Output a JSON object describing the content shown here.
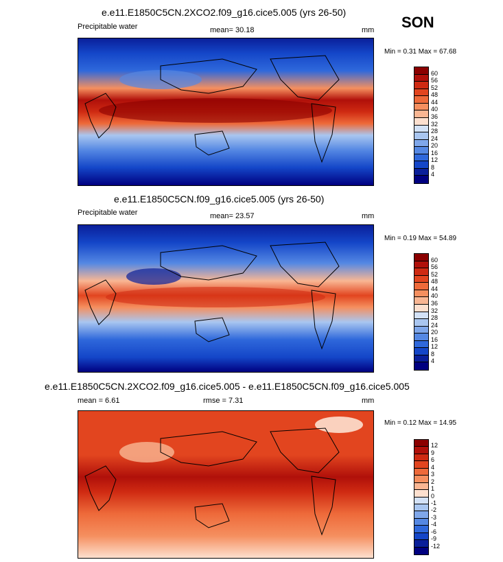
{
  "season": "SON",
  "panels": [
    {
      "title": "e.e11.E1850C5CN.2XCO2.f09_g16.cice5.005 (yrs 26-50)",
      "left_label": "Precipitable water",
      "stat_label": "mean=  30.18",
      "units": "mm",
      "minmax": "Min =   0.31 Max =  67.68",
      "colorbar_labels": [
        "60",
        "56",
        "52",
        "48",
        "44",
        "40",
        "36",
        "32",
        "28",
        "24",
        "20",
        "16",
        "12",
        "8",
        "4"
      ],
      "colors": [
        "#8b0000",
        "#b0100a",
        "#cf2a12",
        "#e2451f",
        "#ee6a3a",
        "#f58f5f",
        "#f9b693",
        "#fde0cf",
        "#d3e2f7",
        "#a9c6f0",
        "#7fa7ea",
        "#5588e3",
        "#2f68db",
        "#1446c8",
        "#0a1f9a",
        "#000080"
      ]
    },
    {
      "title": "e.e11.E1850C5CN.f09_g16.cice5.005 (yrs 26-50)",
      "left_label": "Precipitable water",
      "stat_label": "mean=  23.57",
      "units": "mm",
      "minmax": "Min =   0.19 Max =  54.89",
      "colorbar_labels": [
        "60",
        "56",
        "52",
        "48",
        "44",
        "40",
        "36",
        "32",
        "28",
        "24",
        "20",
        "16",
        "12",
        "8",
        "4"
      ],
      "colors": [
        "#8b0000",
        "#b0100a",
        "#cf2a12",
        "#e2451f",
        "#ee6a3a",
        "#f58f5f",
        "#f9b693",
        "#fde0cf",
        "#d3e2f7",
        "#a9c6f0",
        "#7fa7ea",
        "#5588e3",
        "#2f68db",
        "#1446c8",
        "#0a1f9a",
        "#000080"
      ]
    },
    {
      "title": "e.e11.E1850C5CN.2XCO2.f09_g16.cice5.005 - e.e11.E1850C5CN.f09_g16.cice5.005",
      "left_label": "mean =   6.61",
      "stat_label": "rmse =   7.31",
      "units": "mm",
      "minmax": "Min =   0.12 Max =  14.95",
      "colorbar_labels": [
        "12",
        "9",
        "6",
        "4",
        "3",
        "2",
        "1",
        "0",
        "-1",
        "-2",
        "-3",
        "-4",
        "-6",
        "-9",
        "-12"
      ],
      "colors": [
        "#8b0000",
        "#b0100a",
        "#cf2a12",
        "#e2451f",
        "#ee6a3a",
        "#f58f5f",
        "#f9b693",
        "#fde0cf",
        "#d3e2f7",
        "#a9c6f0",
        "#7fa7ea",
        "#5588e3",
        "#2f68db",
        "#1446c8",
        "#0a1f9a",
        "#000080"
      ]
    }
  ],
  "chart_data": [
    {
      "type": "heatmap",
      "title": "e.e11.E1850C5CN.2XCO2.f09_g16.cice5.005 (yrs 26-50)",
      "variable": "Precipitable water",
      "units": "mm",
      "mean": 30.18,
      "min": 0.31,
      "max": 67.68,
      "levels": [
        4,
        8,
        12,
        16,
        20,
        24,
        28,
        32,
        36,
        40,
        44,
        48,
        52,
        56,
        60
      ]
    },
    {
      "type": "heatmap",
      "title": "e.e11.E1850C5CN.f09_g16.cice5.005 (yrs 26-50)",
      "variable": "Precipitable water",
      "units": "mm",
      "mean": 23.57,
      "min": 0.19,
      "max": 54.89,
      "levels": [
        4,
        8,
        12,
        16,
        20,
        24,
        28,
        32,
        36,
        40,
        44,
        48,
        52,
        56,
        60
      ]
    },
    {
      "type": "heatmap",
      "title": "e.e11.E1850C5CN.2XCO2.f09_g16.cice5.005 - e.e11.E1850C5CN.f09_g16.cice5.005",
      "units": "mm",
      "mean": 6.61,
      "rmse": 7.31,
      "min": 0.12,
      "max": 14.95,
      "levels": [
        -12,
        -9,
        -6,
        -4,
        -3,
        -2,
        -1,
        0,
        1,
        2,
        3,
        4,
        6,
        9,
        12
      ]
    }
  ]
}
